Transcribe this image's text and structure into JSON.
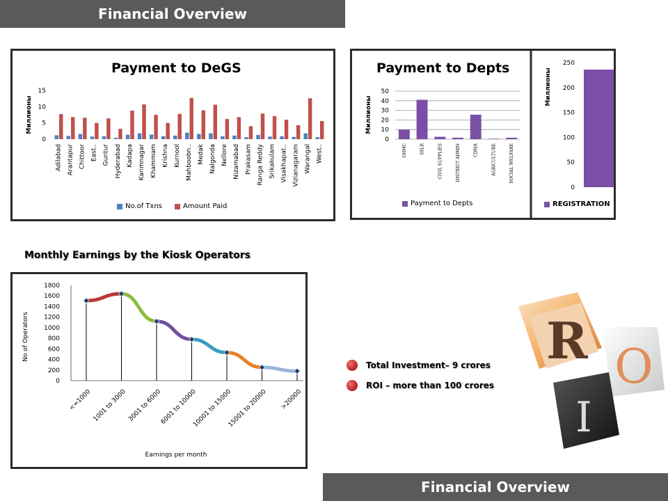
{
  "header": {
    "title": "Financial Overview"
  },
  "footer": {
    "title": "Financial Overview"
  },
  "section": {
    "title": "Monthly Earnings by the Kiosk Operators"
  },
  "bullets": [
    {
      "text": "Total Investment– 9 crores"
    },
    {
      "text": "ROI – more than 100 crores"
    }
  ],
  "colors": {
    "blue": "#4f81bd",
    "red": "#c0504d",
    "purple": "#7b4fa6",
    "banner": "#5a5a5a",
    "bullet": "#c0282a"
  },
  "chart_data": [
    {
      "type": "bar",
      "title": "Payment to DeGS",
      "ylabel": "Миллионы",
      "ylim": [
        0,
        15
      ],
      "yticks": [
        "0",
        "5",
        "10",
        "15"
      ],
      "categories": [
        "Adilabad",
        "Arantapur",
        "Chittoor",
        "East..",
        "Guntur",
        "Hyderabad",
        "Kadapa",
        "Karimnagar",
        "Khammam",
        "Krishna",
        "Kurnool",
        "Mahboobn..",
        "Medak",
        "Nalgonda",
        "Nellore",
        "Nizamabad",
        "Prakasam",
        "Ranga Reddy",
        "Srikakulam",
        "Visakhapat..",
        "Vizianagaram",
        "Warangal",
        "West.."
      ],
      "series": [
        {
          "name": "No.of Txns",
          "values": [
            1.2,
            1.0,
            1.6,
            0.8,
            0.9,
            0.4,
            1.4,
            1.8,
            1.4,
            0.9,
            1.1,
            2.0,
            1.6,
            1.8,
            0.9,
            1.1,
            0.6,
            1.3,
            0.8,
            0.9,
            0.7,
            1.8,
            0.6
          ]
        },
        {
          "name": "Amount Paid",
          "values": [
            7.7,
            6.8,
            6.6,
            5.0,
            6.4,
            3.2,
            8.8,
            10.7,
            7.5,
            5.0,
            7.8,
            12.7,
            8.9,
            10.6,
            6.2,
            6.8,
            4.0,
            7.9,
            7.1,
            6.0,
            4.3,
            12.6,
            5.6
          ]
        }
      ],
      "legend": "bottom"
    },
    {
      "type": "bar",
      "title": "Payment to Depts",
      "ylabel": "Миллионы",
      "ylim": [
        0,
        50
      ],
      "yticks": [
        "0",
        "10",
        "20",
        "30",
        "40",
        "50"
      ],
      "categories": [
        "GHMC",
        "SSLR",
        "CIVIL SUPPLIES",
        "DISTRICT ADMIN",
        "CDMA",
        "AGRICULTURE",
        "SOCIAL WELFARE"
      ],
      "series": [
        {
          "name": "Payment to Depts",
          "values": [
            10,
            41,
            2.5,
            1.5,
            25.5,
            0.5,
            1.5
          ]
        }
      ],
      "legend": "bottom"
    },
    {
      "type": "bar",
      "ylabel": "Миллионы",
      "ylim": [
        0,
        250
      ],
      "yticks": [
        "0",
        "50",
        "100",
        "150",
        "200",
        "250"
      ],
      "categories": [
        ""
      ],
      "series": [
        {
          "name": "REGISTRATION",
          "values": [
            236
          ]
        }
      ],
      "legend": "bottom"
    },
    {
      "type": "line",
      "xlabel": "Earnings per month",
      "ylabel": "No of Operators",
      "ylim": [
        0,
        1800
      ],
      "yticks": [
        "0",
        "200",
        "400",
        "600",
        "800",
        "1000",
        "1200",
        "1400",
        "1600",
        "1800"
      ],
      "categories": [
        "<=1000",
        "1001 to 3000",
        "3001 to 6000",
        "6001 to 10000",
        "10001 to 15000",
        "15001 to 20000",
        ">20000"
      ],
      "values": [
        1510,
        1640,
        1120,
        780,
        530,
        250,
        180
      ],
      "segment_colors": [
        "#b83a3a",
        "#8bbd3f",
        "#7050a0",
        "#3a9cc0",
        "#e8822a",
        "#9ab5db"
      ]
    }
  ]
}
